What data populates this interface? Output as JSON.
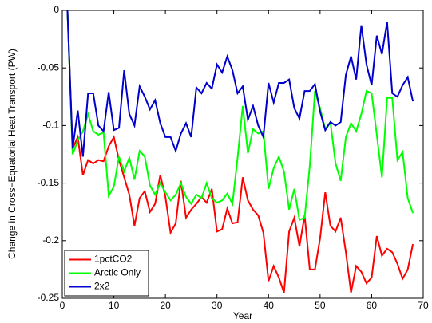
{
  "chart_data": {
    "type": "line",
    "xlabel": "Year",
    "ylabel": "Change in Cross−Equatorial Heat Transport (PW)",
    "xlim": [
      0,
      70
    ],
    "xticks": [
      0,
      10,
      20,
      30,
      40,
      50,
      60,
      70
    ],
    "ylim": [
      -0.25,
      0
    ],
    "yticks": [
      -0.25,
      -0.2,
      -0.15,
      -0.1,
      -0.05,
      0
    ],
    "legend": "lower left",
    "x": [
      1,
      2,
      3,
      4,
      5,
      6,
      7,
      8,
      9,
      10,
      11,
      12,
      13,
      14,
      15,
      16,
      17,
      18,
      19,
      20,
      21,
      22,
      23,
      24,
      25,
      26,
      27,
      28,
      29,
      30,
      31,
      32,
      33,
      34,
      35,
      36,
      37,
      38,
      39,
      40,
      41,
      42,
      43,
      44,
      45,
      46,
      47,
      48,
      49,
      50,
      51,
      52,
      53,
      54,
      55,
      56,
      57,
      58,
      59,
      60,
      61,
      62,
      63,
      64,
      65,
      66,
      67,
      68
    ],
    "series": [
      {
        "name": "1pctCO2",
        "color": "#ff0000",
        "values": [
          0,
          -0.12,
          -0.11,
          -0.143,
          -0.13,
          -0.133,
          -0.13,
          -0.131,
          -0.118,
          -0.11,
          -0.13,
          -0.145,
          -0.16,
          -0.187,
          -0.163,
          -0.157,
          -0.175,
          -0.168,
          -0.143,
          -0.162,
          -0.193,
          -0.185,
          -0.148,
          -0.18,
          -0.173,
          -0.168,
          -0.162,
          -0.167,
          -0.155,
          -0.192,
          -0.19,
          -0.172,
          -0.185,
          -0.184,
          -0.145,
          -0.165,
          -0.173,
          -0.178,
          -0.193,
          -0.235,
          -0.222,
          -0.232,
          -0.245,
          -0.192,
          -0.18,
          -0.205,
          -0.178,
          -0.225,
          -0.225,
          -0.198,
          -0.158,
          -0.187,
          -0.192,
          -0.18,
          -0.21,
          -0.245,
          -0.222,
          -0.227,
          -0.237,
          -0.232,
          -0.196,
          -0.213,
          -0.207,
          -0.21,
          -0.22,
          -0.233,
          -0.225,
          -0.203
        ]
      },
      {
        "name": "Arctic Only",
        "color": "#00ff00",
        "values": [
          0,
          -0.125,
          -0.113,
          -0.105,
          -0.09,
          -0.105,
          -0.108,
          -0.106,
          -0.161,
          -0.153,
          -0.127,
          -0.14,
          -0.128,
          -0.147,
          -0.122,
          -0.127,
          -0.152,
          -0.16,
          -0.15,
          -0.158,
          -0.165,
          -0.16,
          -0.15,
          -0.162,
          -0.168,
          -0.16,
          -0.163,
          -0.15,
          -0.163,
          -0.167,
          -0.165,
          -0.159,
          -0.168,
          -0.128,
          -0.083,
          -0.124,
          -0.103,
          -0.107,
          -0.105,
          -0.155,
          -0.137,
          -0.127,
          -0.14,
          -0.173,
          -0.155,
          -0.182,
          -0.18,
          -0.135,
          -0.07,
          -0.085,
          -0.103,
          -0.097,
          -0.133,
          -0.148,
          -0.11,
          -0.098,
          -0.105,
          -0.09,
          -0.07,
          -0.072,
          -0.108,
          -0.145,
          -0.076,
          -0.076,
          -0.13,
          -0.123,
          -0.163,
          -0.176
        ]
      },
      {
        "name": "2x2",
        "color": "#0000cc",
        "values": [
          0,
          -0.12,
          -0.087,
          -0.127,
          -0.072,
          -0.072,
          -0.1,
          -0.105,
          -0.071,
          -0.104,
          -0.102,
          -0.052,
          -0.09,
          -0.1,
          -0.066,
          -0.075,
          -0.086,
          -0.078,
          -0.098,
          -0.11,
          -0.11,
          -0.122,
          -0.107,
          -0.098,
          -0.11,
          -0.067,
          -0.072,
          -0.063,
          -0.068,
          -0.047,
          -0.054,
          -0.04,
          -0.052,
          -0.072,
          -0.066,
          -0.095,
          -0.083,
          -0.1,
          -0.11,
          -0.063,
          -0.08,
          -0.063,
          -0.063,
          -0.06,
          -0.085,
          -0.094,
          -0.07,
          -0.07,
          -0.064,
          -0.088,
          -0.104,
          -0.097,
          -0.1,
          -0.097,
          -0.056,
          -0.04,
          -0.06,
          -0.013,
          -0.047,
          -0.065,
          -0.022,
          -0.038,
          -0.01,
          -0.072,
          -0.075,
          -0.065,
          -0.058,
          -0.079
        ]
      }
    ]
  }
}
